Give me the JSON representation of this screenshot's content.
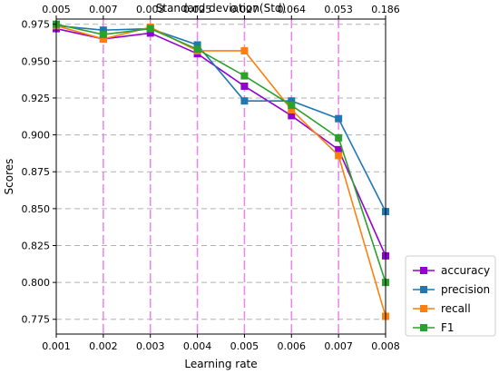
{
  "chart_data": {
    "type": "line",
    "xlabel": "Learning rate",
    "x2label": "Standard deviation(Std)",
    "ylabel": "Scores",
    "x": [
      "0.001",
      "0.002",
      "0.003",
      "0.004",
      "0.005",
      "0.006",
      "0.007",
      "0.008"
    ],
    "x2": [
      "0.005",
      "0.007",
      "0.003",
      "0.025",
      "0.027",
      "0.064",
      "0.053",
      "0.186"
    ],
    "ylim": [
      0.765,
      0.9785
    ],
    "yticks": [
      "0.775",
      "0.800",
      "0.825",
      "0.850",
      "0.875",
      "0.900",
      "0.925",
      "0.950",
      "0.975"
    ],
    "grid": true,
    "legend_position": "bottom-right",
    "series": [
      {
        "name": "accuracy",
        "color": "#9400d3",
        "values": [
          0.972,
          0.965,
          0.969,
          0.955,
          0.933,
          0.913,
          0.89,
          0.818
        ]
      },
      {
        "name": "precision",
        "color": "#1f77b4",
        "values": [
          0.974,
          0.971,
          0.972,
          0.961,
          0.923,
          0.923,
          0.911,
          0.848
        ]
      },
      {
        "name": "recall",
        "color": "#ff7f0e",
        "values": [
          0.974,
          0.965,
          0.973,
          0.957,
          0.957,
          0.917,
          0.886,
          0.777
        ]
      },
      {
        "name": "F1",
        "color": "#2ca02c",
        "values": [
          0.975,
          0.968,
          0.972,
          0.958,
          0.94,
          0.92,
          0.898,
          0.8
        ]
      }
    ]
  }
}
